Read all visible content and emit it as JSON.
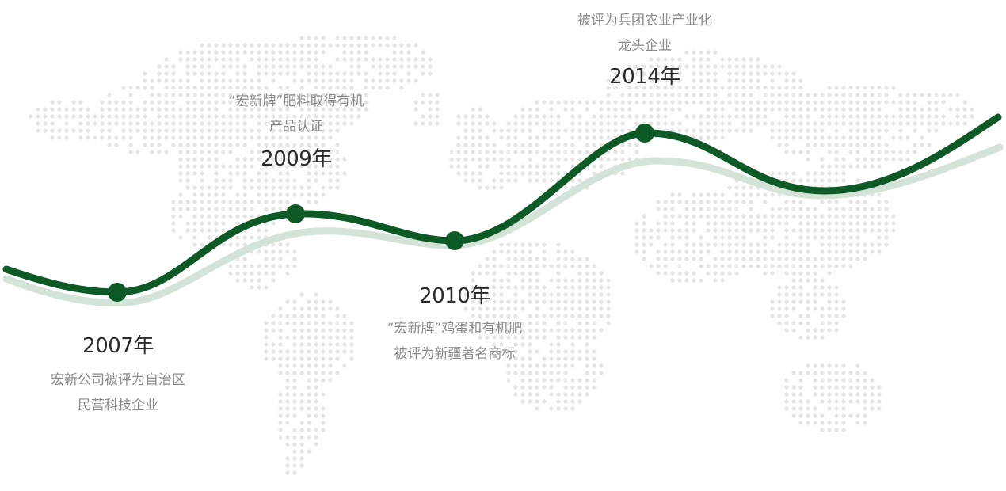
{
  "colors": {
    "accent": "#0e5a27",
    "shadow_curve": "#d4e3d7",
    "map_dots": "#e4e4e4",
    "year_text": "#2b2b2b",
    "desc_text": "#8a8a8a"
  },
  "milestones": [
    {
      "year": "2007年",
      "lines": [
        "宏新公司被评为自治区",
        "民营科技企业"
      ]
    },
    {
      "year": "2009年",
      "lines": [
        "“宏新牌”肥料取得有机",
        "产品认证"
      ]
    },
    {
      "year": "2010年",
      "lines": [
        "“宏新牌”鸡蛋和有机肥",
        "被评为新疆著名商标"
      ]
    },
    {
      "year": "2014年",
      "lines": [
        "被评为兵团农业产业化",
        "龙头企业"
      ]
    }
  ]
}
